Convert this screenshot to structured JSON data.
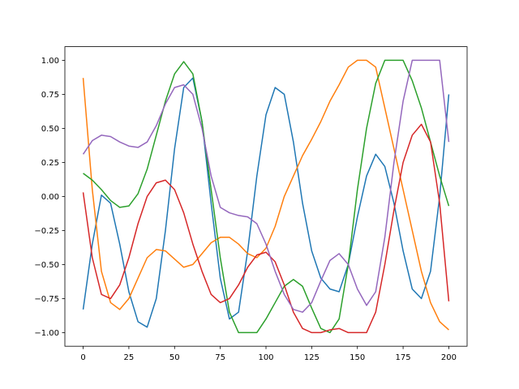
{
  "chart_data": {
    "type": "line",
    "x": [
      0,
      5,
      10,
      15,
      20,
      25,
      30,
      35,
      40,
      45,
      50,
      55,
      60,
      65,
      70,
      75,
      80,
      85,
      90,
      95,
      100,
      105,
      110,
      115,
      120,
      125,
      130,
      135,
      140,
      145,
      150,
      155,
      160,
      165,
      170,
      175,
      180,
      185,
      190,
      195,
      200
    ],
    "series": [
      {
        "color": "#1f77b4",
        "values": [
          -0.83,
          -0.35,
          0.01,
          -0.05,
          -0.35,
          -0.7,
          -0.92,
          -0.96,
          -0.75,
          -0.25,
          0.35,
          0.8,
          0.87,
          0.55,
          -0.05,
          -0.6,
          -0.9,
          -0.85,
          -0.4,
          0.15,
          0.6,
          0.8,
          0.75,
          0.4,
          -0.05,
          -0.4,
          -0.6,
          -0.68,
          -0.7,
          -0.5,
          -0.15,
          0.15,
          0.31,
          0.22,
          -0.05,
          -0.4,
          -0.68,
          -0.75,
          -0.55,
          0.0,
          0.75
        ]
      },
      {
        "color": "#ff7f0e",
        "values": [
          0.87,
          0.05,
          -0.55,
          -0.78,
          -0.83,
          -0.75,
          -0.6,
          -0.45,
          -0.39,
          -0.4,
          -0.46,
          -0.52,
          -0.5,
          -0.42,
          -0.34,
          -0.3,
          -0.3,
          -0.35,
          -0.42,
          -0.45,
          -0.38,
          -0.22,
          0.0,
          0.15,
          0.3,
          0.42,
          0.55,
          0.7,
          0.82,
          0.95,
          1.0,
          1.0,
          0.95,
          0.65,
          0.35,
          0.05,
          -0.25,
          -0.55,
          -0.78,
          -0.92,
          -0.98
        ]
      },
      {
        "color": "#2ca02c",
        "values": [
          0.17,
          0.12,
          0.05,
          -0.03,
          -0.08,
          -0.07,
          0.02,
          0.2,
          0.45,
          0.7,
          0.9,
          0.99,
          0.9,
          0.55,
          0.05,
          -0.45,
          -0.85,
          -1.0,
          -1.0,
          -1.0,
          -0.9,
          -0.78,
          -0.66,
          -0.61,
          -0.66,
          -0.82,
          -0.97,
          -1.0,
          -0.9,
          -0.5,
          0.05,
          0.5,
          0.83,
          1.0,
          1.0,
          1.0,
          0.85,
          0.65,
          0.4,
          0.15,
          -0.07
        ]
      },
      {
        "color": "#d62728",
        "values": [
          0.03,
          -0.45,
          -0.72,
          -0.75,
          -0.65,
          -0.45,
          -0.2,
          0.0,
          0.1,
          0.12,
          0.05,
          -0.12,
          -0.35,
          -0.55,
          -0.72,
          -0.78,
          -0.75,
          -0.65,
          -0.52,
          -0.43,
          -0.41,
          -0.48,
          -0.65,
          -0.85,
          -0.97,
          -1.0,
          -1.0,
          -0.98,
          -0.97,
          -1.0,
          -1.0,
          -1.0,
          -0.85,
          -0.5,
          -0.1,
          0.25,
          0.45,
          0.53,
          0.4,
          -0.05,
          -0.77
        ]
      },
      {
        "color": "#9467bd",
        "values": [
          0.31,
          0.41,
          0.45,
          0.44,
          0.4,
          0.37,
          0.36,
          0.4,
          0.52,
          0.68,
          0.8,
          0.82,
          0.75,
          0.5,
          0.15,
          -0.08,
          -0.12,
          -0.14,
          -0.15,
          -0.2,
          -0.35,
          -0.55,
          -0.72,
          -0.83,
          -0.85,
          -0.78,
          -0.62,
          -0.47,
          -0.42,
          -0.5,
          -0.68,
          -0.8,
          -0.7,
          -0.3,
          0.25,
          0.7,
          1.0,
          1.0,
          1.0,
          1.0,
          0.4
        ]
      }
    ],
    "xlim": [
      -10,
      210
    ],
    "ylim": [
      -1.1,
      1.1
    ],
    "xticks": [
      0,
      25,
      50,
      75,
      100,
      125,
      150,
      175,
      200
    ],
    "yticks": [
      {
        "value": -1,
        "label": "−1.00"
      },
      {
        "value": -0.75,
        "label": "−0.75"
      },
      {
        "value": -0.5,
        "label": "−0.50"
      },
      {
        "value": -0.25,
        "label": "−0.25"
      },
      {
        "value": 0,
        "label": "0.00"
      },
      {
        "value": 0.25,
        "label": "0.25"
      },
      {
        "value": 0.5,
        "label": "0.50"
      },
      {
        "value": 0.75,
        "label": "0.75"
      },
      {
        "value": 1,
        "label": "1.00"
      }
    ]
  }
}
